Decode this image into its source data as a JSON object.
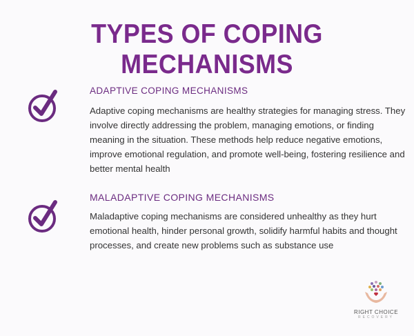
{
  "title": "TYPES OF COPING MECHANISMS",
  "colors": {
    "accent": "#7a2a8c",
    "heading": "#6b2b80",
    "text": "#333333"
  },
  "sections": [
    {
      "icon": "check-circle-icon",
      "heading": "ADAPTIVE COPING MECHANISMS",
      "body": "Adaptive coping mechanisms are healthy strategies for managing stress. They involve directly addressing the problem, managing emotions, or finding meaning in the situation. These methods help reduce negative emotions, improve emotional regulation, and promote well-being, fostering resilience and better mental health"
    },
    {
      "icon": "check-circle-icon",
      "heading": "MALADAPTIVE COPING MECHANISMS",
      "body": "Maladaptive coping mechanisms are considered unhealthy as they hurt emotional health, hinder personal growth, solidify harmful habits and thought processes, and create new problems such as substance use"
    }
  ],
  "logo": {
    "name": "RIGHT CHOICE",
    "sub": "RECOVERY"
  }
}
